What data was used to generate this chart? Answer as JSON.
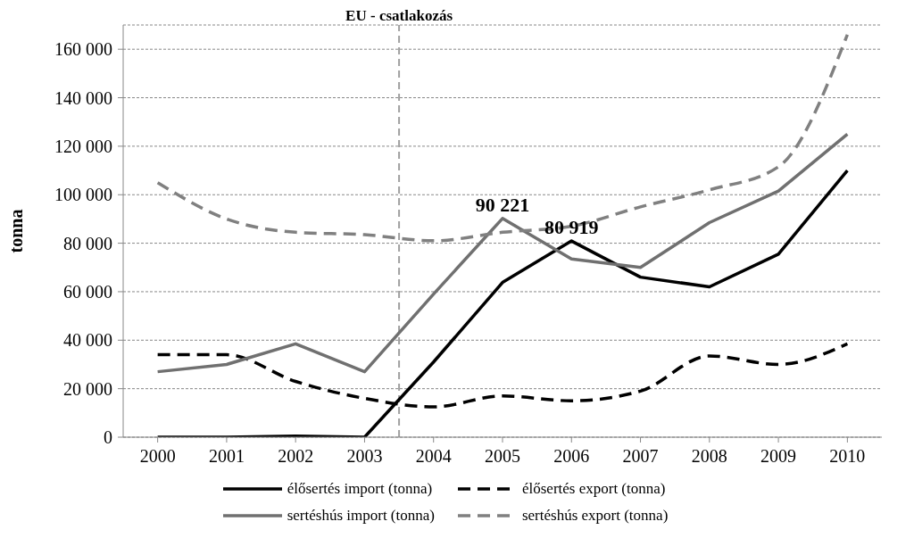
{
  "chart_data": {
    "type": "line",
    "ylabel": "tonna",
    "x": [
      2000,
      2001,
      2002,
      2003,
      2004,
      2005,
      2006,
      2007,
      2008,
      2009,
      2010
    ],
    "xlim": [
      1999.5,
      2010.5
    ],
    "xticks": [
      2000,
      2001,
      2002,
      2003,
      2004,
      2005,
      2006,
      2007,
      2008,
      2009,
      2010
    ],
    "ylim": [
      0,
      170000
    ],
    "yticks": [
      {
        "value": 0,
        "label": "0"
      },
      {
        "value": 20000,
        "label": "20 000"
      },
      {
        "value": 40000,
        "label": "40 000"
      },
      {
        "value": 60000,
        "label": "60 000"
      },
      {
        "value": 80000,
        "label": "80 000"
      },
      {
        "value": 100000,
        "label": "100 000"
      },
      {
        "value": 120000,
        "label": "120 000"
      },
      {
        "value": 140000,
        "label": "140 000"
      },
      {
        "value": 160000,
        "label": "160 000"
      }
    ],
    "grid": "y",
    "legend": "bottom",
    "marker": "none",
    "series": [
      {
        "name": "élősertés import (tonna)",
        "color": "#000000",
        "line_style": "solid",
        "values": [
          0,
          0,
          500,
          0,
          31000,
          63800,
          80919,
          66000,
          62000,
          75500,
          110000
        ]
      },
      {
        "name": "élősertés export (tonna)",
        "color": "#000000",
        "line_style": "dashed",
        "values": [
          34000,
          34000,
          23000,
          16000,
          12500,
          17000,
          15000,
          19000,
          33500,
          30000,
          38500
        ]
      },
      {
        "name": "sertéshús import (tonna)",
        "color": "#707070",
        "line_style": "solid",
        "values": [
          27000,
          30000,
          38500,
          27000,
          59000,
          90221,
          73500,
          70000,
          88500,
          101500,
          125000
        ]
      },
      {
        "name": "sertéshús export (tonna)",
        "color": "#808080",
        "line_style": "dashed",
        "values": [
          105000,
          90000,
          84500,
          83500,
          81000,
          84500,
          87000,
          95000,
          102000,
          111500,
          166000
        ]
      }
    ],
    "ref_lines": [
      {
        "axis": "x",
        "value": 2003.5,
        "label": "EU - csatlakozás",
        "color": "#a0a0a0",
        "line_style": "dashed"
      }
    ],
    "annotations": [
      {
        "text": "90 221",
        "x": 2005,
        "y": 90221
      },
      {
        "text": "80 919",
        "x": 2006,
        "y": 80919
      }
    ]
  }
}
